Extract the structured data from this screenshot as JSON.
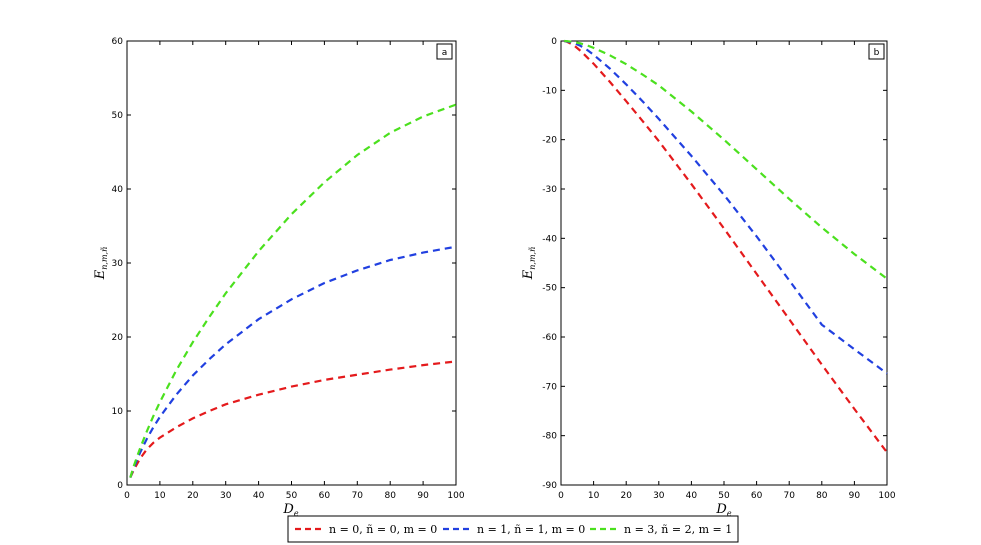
{
  "colors": {
    "n0": "#e41a1c",
    "n1": "#2140e0",
    "n3": "#4be01e"
  },
  "legend": [
    {
      "label": "n = 0, ñ = 0, m = 0",
      "color": "#e41a1c"
    },
    {
      "label": "n = 1, ñ = 1, m = 0",
      "color": "#2140e0"
    },
    {
      "label": "n = 3, ñ = 2, m = 1",
      "color": "#4be01e"
    }
  ],
  "chart_data": [
    {
      "type": "line",
      "panel_label": "a",
      "xlabel": "D_e",
      "ylabel": "E_{n,m,ñ}",
      "xlim": [
        0,
        100
      ],
      "ylim": [
        0,
        60
      ],
      "xticks": [
        0,
        10,
        20,
        30,
        40,
        50,
        60,
        70,
        80,
        90,
        100
      ],
      "yticks": [
        0,
        10,
        20,
        30,
        40,
        50,
        60
      ],
      "grid": false,
      "x": [
        1,
        2,
        4,
        6,
        8,
        10,
        15,
        20,
        25,
        30,
        40,
        50,
        60,
        70,
        80,
        90,
        100
      ],
      "series": [
        {
          "name": "n = 0, ñ = 0, m = 0",
          "color": "#e41a1c",
          "values": [
            1.0,
            2.0,
            3.6,
            4.8,
            5.7,
            6.4,
            7.8,
            9.0,
            10.0,
            10.9,
            12.2,
            13.3,
            14.2,
            14.9,
            15.6,
            16.2,
            16.7
          ]
        },
        {
          "name": "n = 1, ñ = 1, m = 0",
          "color": "#2140e0",
          "values": [
            1.0,
            2.3,
            4.4,
            6.2,
            7.8,
            9.2,
            12.2,
            14.8,
            17.0,
            19.0,
            22.4,
            25.1,
            27.3,
            29.0,
            30.4,
            31.4,
            32.2
          ]
        },
        {
          "name": "n = 3, ñ = 2, m = 1",
          "color": "#4be01e",
          "values": [
            1.0,
            2.5,
            5.0,
            7.2,
            9.3,
            11.2,
            15.5,
            19.3,
            22.7,
            25.9,
            31.6,
            36.6,
            40.9,
            44.6,
            47.6,
            49.8,
            51.4
          ]
        }
      ]
    },
    {
      "type": "line",
      "panel_label": "b",
      "xlabel": "D_e",
      "ylabel": "E_{n,m,ñ}",
      "xlim": [
        0,
        100
      ],
      "ylim": [
        -90,
        0
      ],
      "xticks": [
        0,
        10,
        20,
        30,
        40,
        50,
        60,
        70,
        80,
        90,
        100
      ],
      "yticks": [
        0,
        -10,
        -20,
        -30,
        -40,
        -50,
        -60,
        -70,
        -80,
        -90
      ],
      "grid": false,
      "x": [
        1,
        2,
        4,
        6,
        8,
        10,
        15,
        20,
        25,
        30,
        40,
        50,
        60,
        70,
        80,
        90,
        100
      ],
      "series": [
        {
          "name": "n = 0, ñ = 0, m = 0",
          "color": "#e41a1c",
          "values": [
            0.0,
            -0.2,
            -0.9,
            -2.0,
            -3.3,
            -4.6,
            -8.3,
            -12.2,
            -16.2,
            -20.3,
            -29.0,
            -38.0,
            -47.2,
            -56.4,
            -65.6,
            -74.6,
            -83.4
          ]
        },
        {
          "name": "n = 1, ñ = 1, m = 0",
          "color": "#2140e0",
          "values": [
            0.0,
            -0.1,
            -0.4,
            -1.0,
            -1.8,
            -2.8,
            -5.6,
            -8.8,
            -12.2,
            -15.8,
            -23.3,
            -31.2,
            -39.6,
            -48.5,
            -57.5,
            -62.5,
            -67.4
          ]
        },
        {
          "name": "n = 3, ñ = 2, m = 1",
          "color": "#4be01e",
          "values": [
            0.0,
            -0.05,
            -0.2,
            -0.5,
            -0.9,
            -1.4,
            -2.9,
            -4.7,
            -6.8,
            -9.0,
            -14.3,
            -20.0,
            -26.0,
            -32.0,
            -37.8,
            -43.2,
            -48.2
          ]
        }
      ]
    }
  ]
}
